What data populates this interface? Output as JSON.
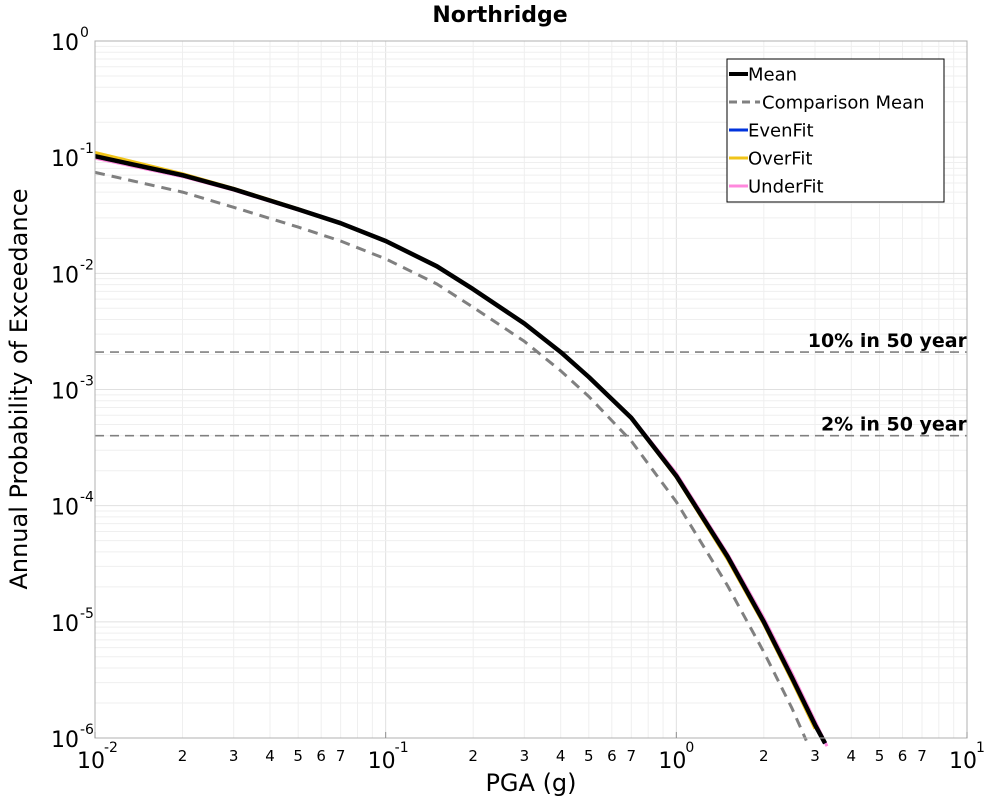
{
  "chart_data": {
    "type": "line",
    "title": "Northridge",
    "xlabel": "PGA (g)",
    "ylabel": "Annual Probability of Exceedance",
    "xscale": "log",
    "yscale": "log",
    "xlim": [
      0.01,
      10
    ],
    "ylim": [
      1e-06,
      1
    ],
    "grid": true,
    "legend_position": "top-right",
    "x_ticks": [
      {
        "value": 0.01,
        "base": "10",
        "exp": "-2",
        "major": true
      },
      {
        "value": 0.02,
        "label": "2"
      },
      {
        "value": 0.03,
        "label": "3"
      },
      {
        "value": 0.04,
        "label": "4"
      },
      {
        "value": 0.05,
        "label": "5"
      },
      {
        "value": 0.06,
        "label": "6"
      },
      {
        "value": 0.07,
        "label": "7"
      },
      {
        "value": 0.1,
        "base": "10",
        "exp": "-1",
        "major": true
      },
      {
        "value": 0.2,
        "label": "2"
      },
      {
        "value": 0.3,
        "label": "3"
      },
      {
        "value": 0.4,
        "label": "4"
      },
      {
        "value": 0.5,
        "label": "5"
      },
      {
        "value": 0.6,
        "label": "6"
      },
      {
        "value": 0.7,
        "label": "7"
      },
      {
        "value": 1,
        "base": "10",
        "exp": "0",
        "major": true
      },
      {
        "value": 2,
        "label": "2"
      },
      {
        "value": 3,
        "label": "3"
      },
      {
        "value": 4,
        "label": "4"
      },
      {
        "value": 5,
        "label": "5"
      },
      {
        "value": 6,
        "label": "6"
      },
      {
        "value": 7,
        "label": "7"
      },
      {
        "value": 10,
        "base": "10",
        "exp": "1",
        "major": true
      }
    ],
    "y_ticks": [
      {
        "value": 1,
        "base": "10",
        "exp": "0"
      },
      {
        "value": 0.1,
        "base": "10",
        "exp": "-1"
      },
      {
        "value": 0.01,
        "base": "10",
        "exp": "-2"
      },
      {
        "value": 0.001,
        "base": "10",
        "exp": "-3"
      },
      {
        "value": 0.0001,
        "base": "10",
        "exp": "-4"
      },
      {
        "value": 1e-05,
        "base": "10",
        "exp": "-5"
      },
      {
        "value": 1e-06,
        "base": "10",
        "exp": "-6"
      }
    ],
    "reference_lines": [
      {
        "label": "10% in 50 year",
        "y": 0.0021,
        "color": "#808080"
      },
      {
        "label": "2% in 50 year",
        "y": 0.0004,
        "color": "#808080"
      }
    ],
    "series": [
      {
        "name": "OverFit",
        "color": "#f0c419",
        "style": "solid",
        "points": [
          [
            0.01,
            0.11
          ],
          [
            0.02,
            0.072
          ],
          [
            0.03,
            0.054
          ],
          [
            0.05,
            0.036
          ],
          [
            0.07,
            0.027
          ],
          [
            0.1,
            0.019
          ],
          [
            0.15,
            0.0115
          ],
          [
            0.2,
            0.0073
          ],
          [
            0.3,
            0.0037
          ],
          [
            0.4,
            0.0021
          ],
          [
            0.5,
            0.00128
          ],
          [
            0.7,
            0.00056
          ],
          [
            1,
            0.000175
          ],
          [
            1.5,
            3.45e-05
          ],
          [
            2,
            9.5e-06
          ],
          [
            2.5,
            3.1e-06
          ],
          [
            3,
            1.2e-06
          ]
        ]
      },
      {
        "name": "UnderFit",
        "color": "#ff88dd",
        "style": "solid",
        "points": [
          [
            0.01,
            0.098
          ],
          [
            0.02,
            0.068
          ],
          [
            0.03,
            0.052
          ],
          [
            0.05,
            0.035
          ],
          [
            0.07,
            0.027
          ],
          [
            0.1,
            0.0188
          ],
          [
            0.15,
            0.0115
          ],
          [
            0.2,
            0.0073
          ],
          [
            0.3,
            0.0037
          ],
          [
            0.4,
            0.0021
          ],
          [
            0.5,
            0.00129
          ],
          [
            0.7,
            0.00058
          ],
          [
            1,
            0.00019
          ],
          [
            1.5,
            3.85e-05
          ],
          [
            2,
            1.08e-05
          ],
          [
            2.5,
            3.6e-06
          ],
          [
            3,
            1.4e-06
          ],
          [
            3.3,
            8.5e-07
          ]
        ]
      },
      {
        "name": "EvenFit",
        "color": "#0033dd",
        "style": "solid",
        "points": [
          [
            0.01,
            0.101
          ],
          [
            0.02,
            0.069
          ],
          [
            0.03,
            0.053
          ],
          [
            0.05,
            0.0355
          ],
          [
            0.07,
            0.027
          ],
          [
            0.1,
            0.019
          ],
          [
            0.15,
            0.0115
          ],
          [
            0.2,
            0.0073
          ],
          [
            0.3,
            0.0037
          ],
          [
            0.4,
            0.0021
          ],
          [
            0.5,
            0.00128
          ],
          [
            0.7,
            0.00057
          ],
          [
            1,
            0.00018
          ],
          [
            1.5,
            3.65e-05
          ],
          [
            2,
            1e-05
          ],
          [
            2.5,
            3.3e-06
          ],
          [
            3,
            1.3e-06
          ],
          [
            3.25,
            9e-07
          ]
        ]
      },
      {
        "name": "Mean",
        "color": "#000000",
        "style": "solid",
        "points": [
          [
            0.01,
            0.102
          ],
          [
            0.02,
            0.07
          ],
          [
            0.03,
            0.053
          ],
          [
            0.05,
            0.0355
          ],
          [
            0.07,
            0.027
          ],
          [
            0.1,
            0.019
          ],
          [
            0.15,
            0.0115
          ],
          [
            0.2,
            0.0073
          ],
          [
            0.3,
            0.0037
          ],
          [
            0.4,
            0.0021
          ],
          [
            0.5,
            0.00128
          ],
          [
            0.7,
            0.00057
          ],
          [
            1,
            0.00018
          ],
          [
            1.5,
            3.65e-05
          ],
          [
            2,
            1e-05
          ],
          [
            2.5,
            3.3e-06
          ],
          [
            3,
            1.3e-06
          ],
          [
            3.25,
            9e-07
          ]
        ]
      },
      {
        "name": "Comparison Mean",
        "color": "#808080",
        "style": "dashed",
        "points": [
          [
            0.01,
            0.074
          ],
          [
            0.02,
            0.05
          ],
          [
            0.03,
            0.037
          ],
          [
            0.05,
            0.025
          ],
          [
            0.07,
            0.019
          ],
          [
            0.1,
            0.0133
          ],
          [
            0.15,
            0.0081
          ],
          [
            0.2,
            0.0051
          ],
          [
            0.3,
            0.0026
          ],
          [
            0.4,
            0.00145
          ],
          [
            0.5,
            0.00087
          ],
          [
            0.7,
            0.00036
          ],
          [
            1,
            0.000108
          ],
          [
            1.5,
            2.05e-05
          ],
          [
            2,
            5.5e-06
          ],
          [
            2.5,
            1.8e-06
          ],
          [
            2.8,
            9.5e-07
          ]
        ]
      }
    ],
    "legend": [
      {
        "name": "Mean",
        "color": "#000000",
        "style": "solid",
        "width": 4
      },
      {
        "name": "Comparison Mean",
        "color": "#808080",
        "style": "dashed",
        "width": 3
      },
      {
        "name": "EvenFit",
        "color": "#0033dd",
        "style": "solid",
        "width": 3
      },
      {
        "name": "OverFit",
        "color": "#f0c419",
        "style": "solid",
        "width": 3
      },
      {
        "name": "UnderFit",
        "color": "#ff88dd",
        "style": "solid",
        "width": 3
      }
    ]
  }
}
